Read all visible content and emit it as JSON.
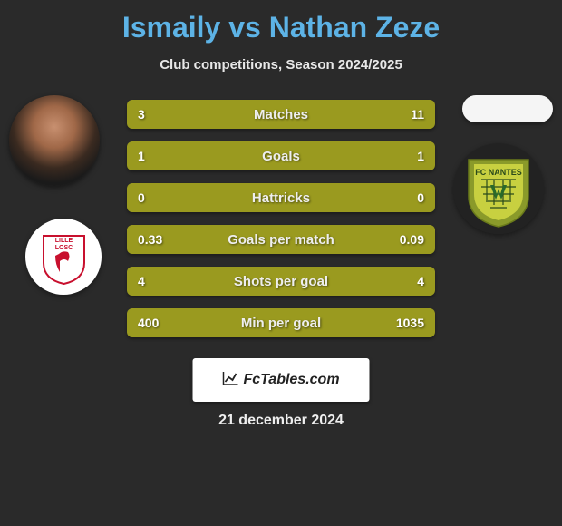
{
  "title": {
    "player1": "Ismaily",
    "vs": "vs",
    "player2": "Nathan Zeze",
    "color": "#5db3e6"
  },
  "subtitle": "Club competitions, Season 2024/2025",
  "stats": {
    "row_background": "#9a9a1f",
    "rows": [
      {
        "left": "3",
        "label": "Matches",
        "right": "11"
      },
      {
        "left": "1",
        "label": "Goals",
        "right": "1"
      },
      {
        "left": "0",
        "label": "Hattricks",
        "right": "0"
      },
      {
        "left": "0.33",
        "label": "Goals per match",
        "right": "0.09"
      },
      {
        "left": "4",
        "label": "Shots per goal",
        "right": "4"
      },
      {
        "left": "400",
        "label": "Min per goal",
        "right": "1035"
      }
    ]
  },
  "club1": {
    "name": "Lille LOSC",
    "badge_text": "LILLE",
    "badge_text2": "LOSC",
    "primary_color": "#c8102e",
    "accent_color": "#1a2a6c"
  },
  "club2": {
    "name": "FC Nantes",
    "shield_color": "#8a9a2a",
    "inner_color": "#c8d040",
    "text_color": "#2a4a1a",
    "badge_text": "FC NANTES"
  },
  "branding": "FcTables.com",
  "date": "21 december 2024",
  "background_color": "#2a2a2a"
}
